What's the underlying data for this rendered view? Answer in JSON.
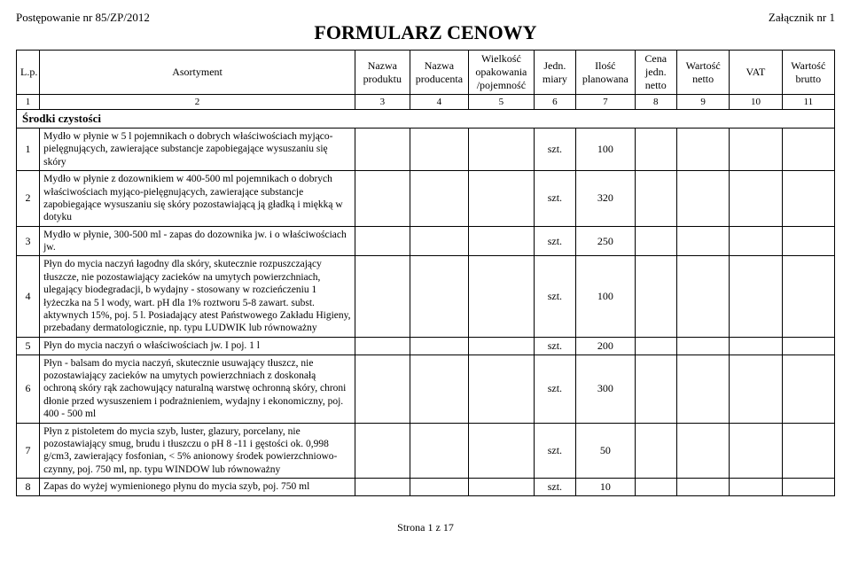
{
  "header": {
    "left": "Postępowanie nr 85/ZP/2012",
    "right": "Załącznik nr 1",
    "title": "FORMULARZ CENOWY"
  },
  "columns": {
    "lp": "L.p.",
    "asort": "Asortyment",
    "nazwa_produktu": "Nazwa produktu",
    "nazwa_producenta": "Nazwa producenta",
    "wielkosc": "Wielkość opakowania /pojemność",
    "jedn": "Jedn. miary",
    "ilosc": "Ilość planowana",
    "cena_jedn": "Cena jedn. netto",
    "wartosc_netto": "Wartość netto",
    "vat": "VAT",
    "wartosc_brutto": "Wartość brutto"
  },
  "colnums": [
    "1",
    "2",
    "3",
    "4",
    "5",
    "6",
    "7",
    "8",
    "9",
    "10",
    "11"
  ],
  "section_title": "Środki czystości",
  "rows": [
    {
      "lp": "1",
      "asort": "Mydło w płynie w 5 l pojemnikach o dobrych właściwościach myjąco-pielęgnujących, zawierające substancje zapobiegające wysuszaniu się skóry",
      "jedn": "szt.",
      "ilosc": "100"
    },
    {
      "lp": "2",
      "asort": "Mydło w płynie z dozownikiem w 400-500 ml pojemnikach o dobrych właściwościach myjąco-pielęgnujących, zawierające substancje zapobiegające wysuszaniu się skóry pozostawiającą ją gładką i miękką w dotyku",
      "jedn": "szt.",
      "ilosc": "320"
    },
    {
      "lp": "3",
      "asort": "Mydło w płynie, 300-500 ml - zapas do dozownika jw. i o właściwościach jw.",
      "jedn": "szt.",
      "ilosc": "250"
    },
    {
      "lp": "4",
      "asort": "Płyn do mycia naczyń łagodny dla skóry, skutecznie rozpuszczający tłuszcze, nie pozostawiający zacieków na umytych powierzchniach, ulegający biodegradacji, b wydajny - stosowany w rozcieńczeniu 1 łyżeczka na 5 l wody, wart. pH dla 1% roztworu 5-8 zawart. subst. aktywnych 15%, poj. 5 l. Posiadający atest Państwowego Zakładu Higieny, przebadany dermatologicznie, np. typu LUDWIK lub równoważny",
      "jedn": "szt.",
      "ilosc": "100"
    },
    {
      "lp": "5",
      "asort": "Płyn do mycia naczyń o właściwościach jw. I poj. 1 l",
      "jedn": "szt.",
      "ilosc": "200"
    },
    {
      "lp": "6",
      "asort": "Płyn - balsam do mycia naczyń, skutecznie usuwający tłuszcz, nie pozostawiający zacieków na umytych powierzchniach z doskonałą ochroną skóry rąk zachowujący naturalną warstwę ochronną skóry, chroni dłonie przed wysuszeniem i podrażnieniem, wydajny i ekonomiczny, poj. 400 - 500 ml",
      "jedn": "szt.",
      "ilosc": "300"
    },
    {
      "lp": "7",
      "asort": "Płyn z pistoletem do mycia szyb, luster, glazury, porcelany, nie pozostawiający smug, brudu i tłuszczu o pH 8 -11 i gęstości ok. 0,998 g/cm3, zawierający fosfonian, < 5% anionowy środek powierzchniowo-czynny, poj. 750 ml, np. typu WINDOW lub równoważny",
      "jedn": "szt.",
      "ilosc": "50"
    },
    {
      "lp": "8",
      "asort": "Zapas do wyżej wymienionego płynu do mycia szyb, poj. 750 ml",
      "jedn": "szt.",
      "ilosc": "10"
    }
  ],
  "footer": "Strona 1 z 17"
}
